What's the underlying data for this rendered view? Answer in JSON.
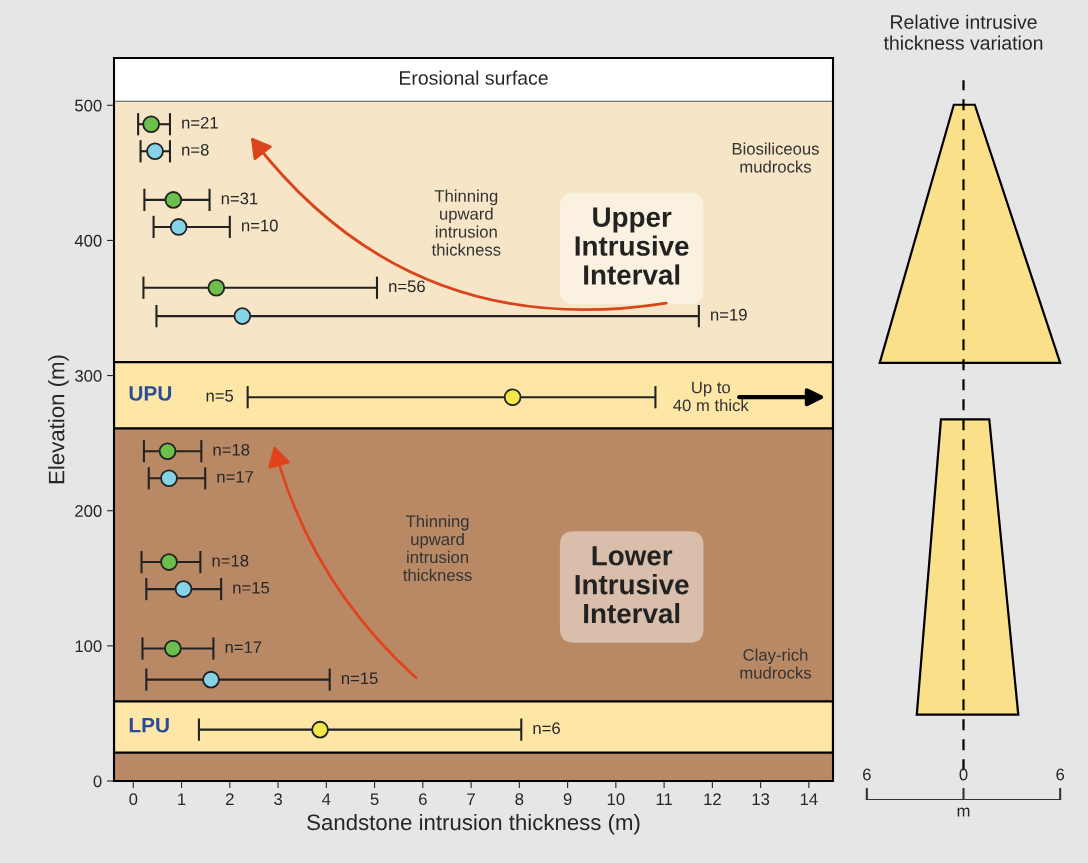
{
  "chart_data": [
    {
      "type": "scatter",
      "xlabel": "Sandstone intrusion thickness (m)",
      "ylabel": "Elevation (m)",
      "xlim": [
        -0.4,
        14.5
      ],
      "xticks": [
        0,
        1,
        2,
        3,
        4,
        5,
        6,
        7,
        8,
        9,
        10,
        11,
        12,
        13,
        14
      ],
      "ylim": [
        0,
        535
      ],
      "yticks": [
        0,
        100,
        200,
        300,
        400,
        500
      ],
      "marker": "circle",
      "grid": false,
      "legend": false,
      "series": [
        {
          "color": "#6cbf4a",
          "x": [
            0.37,
            0.83,
            1.72,
            0.71,
            0.74,
            0.82
          ],
          "values": [
            486,
            430,
            365,
            244,
            162,
            98
          ],
          "xerrors": [
            [
              0.1,
              0.76
            ],
            [
              0.23,
              1.58
            ],
            [
              0.21,
              5.05
            ],
            [
              0.22,
              1.41
            ],
            [
              0.17,
              1.39
            ],
            [
              0.19,
              1.66
            ]
          ]
        },
        {
          "color": "#86d3e8",
          "x": [
            0.45,
            0.94,
            2.26,
            0.74,
            1.04,
            1.61
          ],
          "values": [
            466,
            410,
            344,
            224,
            142,
            75
          ],
          "xerrors": [
            [
              0.15,
              0.76
            ],
            [
              0.42,
              2.0
            ],
            [
              0.48,
              11.72
            ],
            [
              0.32,
              1.49
            ],
            [
              0.27,
              1.82
            ],
            [
              0.27,
              4.07
            ]
          ]
        },
        {
          "color": "#f3e84a",
          "x": [
            7.86,
            3.87
          ],
          "values": [
            284,
            38
          ],
          "xerrors": [
            [
              2.37,
              10.82
            ],
            [
              1.36,
              8.04
            ]
          ]
        }
      ],
      "bands": [
        {
          "axis": "y",
          "from": 261,
          "to": 503,
          "color": "#f6e5c6",
          "label": "Upper Intrusive Interval"
        },
        {
          "axis": "y",
          "from": 0,
          "to": 261,
          "color": "#b98966",
          "label": "Lower Intrusive Interval"
        },
        {
          "axis": "y",
          "from": 261,
          "to": 310,
          "color": "#fde6a6",
          "label": "UPU"
        },
        {
          "axis": "y",
          "from": 21,
          "to": 59,
          "color": "#fde6a6",
          "label": "LPU"
        }
      ],
      "ref_lines": [
        {
          "axis": "y",
          "value": 503,
          "label": "Erosional surface",
          "color": "#555555"
        }
      ],
      "annotations": [
        {
          "text": "n=21",
          "x": 0.76,
          "y": 486
        },
        {
          "text": "n=8",
          "x": 0.76,
          "y": 466
        },
        {
          "text": "n=31",
          "x": 1.58,
          "y": 430
        },
        {
          "text": "n=10",
          "x": 2.0,
          "y": 410
        },
        {
          "text": "n=56",
          "x": 5.05,
          "y": 365
        },
        {
          "text": "n=19",
          "x": 11.72,
          "y": 344
        },
        {
          "text": "n=5",
          "x": 2.37,
          "y": 284
        },
        {
          "text": "n=18",
          "x": 1.41,
          "y": 244
        },
        {
          "text": "n=17",
          "x": 1.49,
          "y": 224
        },
        {
          "text": "n=18",
          "x": 1.39,
          "y": 162
        },
        {
          "text": "n=15",
          "x": 1.82,
          "y": 142
        },
        {
          "text": "n=17",
          "x": 1.66,
          "y": 98
        },
        {
          "text": "n=15",
          "x": 4.07,
          "y": 75
        },
        {
          "text": "n=6",
          "x": 8.04,
          "y": 38
        },
        "Thinning\nupward\nintrusion\nthickness",
        "Thinning\nupward\nintrusion\nthickness",
        "Biosiliceous\nmudrocks",
        "Clay-rich\nmudrocks",
        "Up to\n40 m thick"
      ]
    },
    {
      "type": "other",
      "title": "Relative intrusive\nthickness variation",
      "xlabel": "m",
      "annotations": [
        "6",
        "0",
        "6"
      ]
    }
  ]
}
